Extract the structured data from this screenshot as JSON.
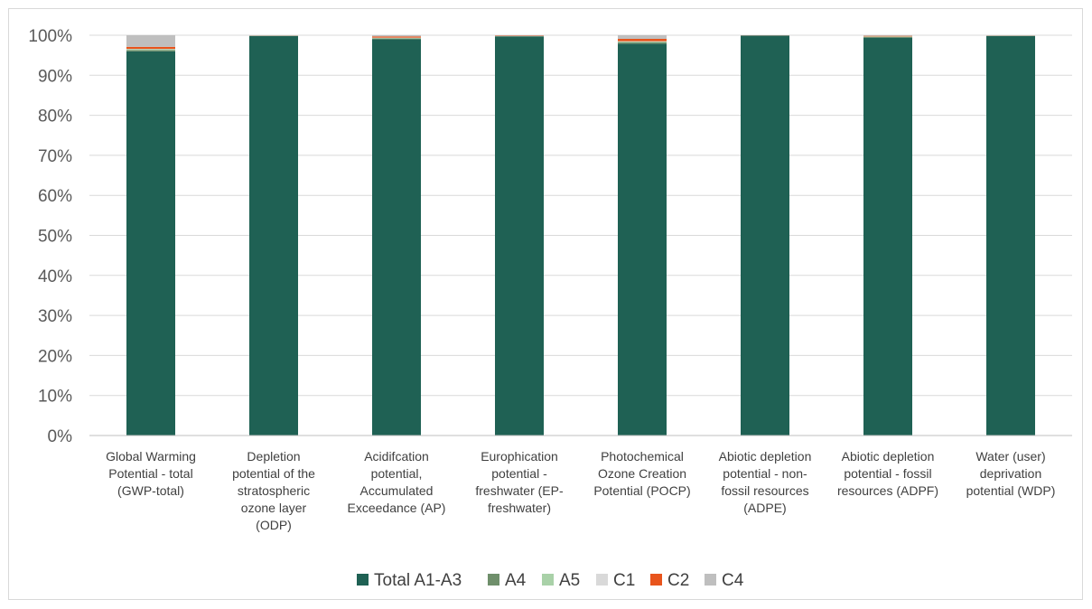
{
  "chart_data": {
    "type": "bar",
    "stacked": true,
    "title": "",
    "xlabel": "",
    "ylabel": "",
    "ylim": [
      0,
      100
    ],
    "yticks": [
      "0%",
      "10%",
      "20%",
      "30%",
      "40%",
      "50%",
      "60%",
      "70%",
      "80%",
      "90%",
      "100%"
    ],
    "grid": true,
    "legend_position": "bottom",
    "categories": [
      [
        "Global Warming",
        "Potential - total",
        "(GWP-total)"
      ],
      [
        "Depletion",
        "potential of the",
        "stratospheric",
        "ozone layer",
        "(ODP)"
      ],
      [
        "Acidifcation",
        "potential,",
        "Accumulated",
        "Exceedance (AP)"
      ],
      [
        "Europhication",
        "potential -",
        "freshwater (EP-",
        "freshwater)"
      ],
      [
        "Photochemical",
        "Ozone Creation",
        "Potential  (POCP)"
      ],
      [
        "Abiotic depletion",
        "potential - non-",
        "fossil resources",
        "(ADPE)"
      ],
      [
        "Abiotic depletion",
        "potential - fossil",
        "resources (ADPF)"
      ],
      [
        "Water (user)",
        "deprivation",
        "potential (WDP)"
      ]
    ],
    "series": [
      {
        "name": "Total A1-A3",
        "color": "#1f6154",
        "values": [
          96.0,
          99.8,
          99.0,
          99.7,
          97.9,
          99.9,
          99.4,
          99.8
        ]
      },
      {
        "name": "A4",
        "color": "#6f8f6b",
        "values": [
          0.3,
          0.05,
          0.2,
          0.05,
          0.3,
          0.02,
          0.15,
          0.05
        ]
      },
      {
        "name": "A5",
        "color": "#a9d1a8",
        "values": [
          0.2,
          0.02,
          0.1,
          0.02,
          0.2,
          0.01,
          0.1,
          0.02
        ]
      },
      {
        "name": "C1",
        "color": "#d9d9d9",
        "values": [
          0.1,
          0.01,
          0.1,
          0.01,
          0.1,
          0.01,
          0.05,
          0.01
        ]
      },
      {
        "name": "C2",
        "color": "#e8541c",
        "values": [
          0.5,
          0.05,
          0.3,
          0.1,
          0.6,
          0.03,
          0.15,
          0.05
        ]
      },
      {
        "name": "C4",
        "color": "#bfbfbf",
        "values": [
          2.9,
          0.07,
          0.3,
          0.12,
          0.9,
          0.03,
          0.15,
          0.07
        ]
      }
    ]
  }
}
